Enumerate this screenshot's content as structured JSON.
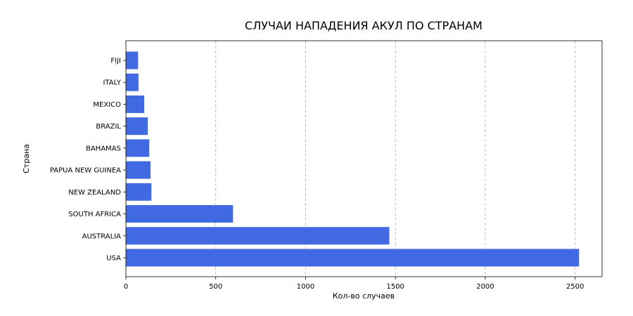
{
  "chart_data": {
    "type": "bar",
    "orientation": "horizontal",
    "title": "СЛУЧАИ НАПАДЕНИЯ АКУЛ ПО СТРАНАМ",
    "xlabel": "Кол-во случаев",
    "ylabel": "Страна",
    "categories": [
      "USA",
      "AUSTRALIA",
      "SOUTH AFRICA",
      "NEW ZEALAND",
      "PAPUA NEW GUINEA",
      "BAHAMAS",
      "BRAZIL",
      "MEXICO",
      "ITALY",
      "FIJI"
    ],
    "values": [
      2522,
      1466,
      596,
      142,
      137,
      130,
      122,
      102,
      70,
      68
    ],
    "xlim": [
      0,
      2650
    ],
    "xticks": [
      0,
      500,
      1000,
      1500,
      2000,
      2500
    ],
    "grid": "x-dashed",
    "bar_color": "#4169e1"
  }
}
